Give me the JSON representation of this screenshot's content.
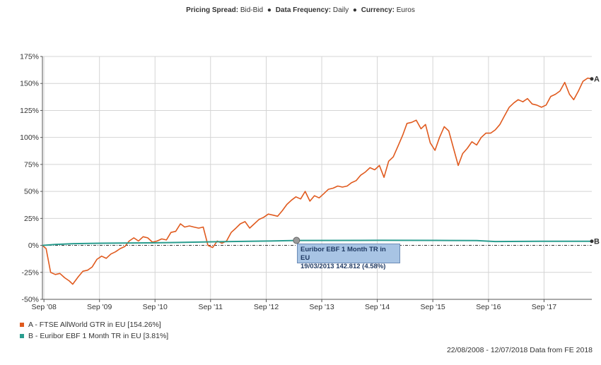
{
  "header": {
    "items": [
      {
        "label": "Pricing Spread:",
        "value": "Bid-Bid"
      },
      {
        "label": "Data Frequency:",
        "value": "Daily"
      },
      {
        "label": "Currency:",
        "value": "Euros"
      }
    ],
    "separator": "●"
  },
  "legend": [
    {
      "text": "A - FTSE AllWorld GTR in EU [154.26%]",
      "color": "#e05a1e"
    },
    {
      "text": "B - Euribor EBF 1 Month TR in EU [3.81%]",
      "color": "#2a9d8f"
    }
  ],
  "footer": "22/08/2008 - 12/07/2018 Data from FE 2018",
  "tooltip": {
    "title": "Euribor EBF 1 Month TR in EU",
    "date": "19/03/2013",
    "value": "142.812",
    "pct": "(4.58%)"
  },
  "chart_data": {
    "type": "line",
    "title": "",
    "xlabel": "",
    "ylabel": "",
    "ylim": [
      -50,
      175
    ],
    "yticks": [
      -50,
      -25,
      0,
      25,
      50,
      75,
      100,
      125,
      150,
      175
    ],
    "ytick_labels": [
      "-50%",
      "-25%",
      "0%",
      "25%",
      "50%",
      "75%",
      "100%",
      "125%",
      "150%",
      "175%"
    ],
    "xlim": [
      "2008-08-22",
      "2018-07-12"
    ],
    "xticks": [
      "2008-09-01",
      "2009-09-01",
      "2010-09-01",
      "2011-09-01",
      "2012-09-01",
      "2013-09-01",
      "2014-09-01",
      "2015-09-01",
      "2016-09-01",
      "2017-09-01"
    ],
    "xtick_labels": [
      "Sep '08",
      "Sep '09",
      "Sep '10",
      "Sep '11",
      "Sep '12",
      "Sep '13",
      "Sep '14",
      "Sep '15",
      "Sep '16",
      "Sep '17"
    ],
    "grid": true,
    "series": [
      {
        "name": "A",
        "color": "#e05a1e",
        "points": [
          [
            "2008-08-22",
            0
          ],
          [
            "2008-09-15",
            -3
          ],
          [
            "2008-10-15",
            -25
          ],
          [
            "2008-11-15",
            -27
          ],
          [
            "2008-12-15",
            -26
          ],
          [
            "2009-01-15",
            -30
          ],
          [
            "2009-02-15",
            -33
          ],
          [
            "2009-03-09",
            -36
          ],
          [
            "2009-04-15",
            -29
          ],
          [
            "2009-05-15",
            -24
          ],
          [
            "2009-06-15",
            -23
          ],
          [
            "2009-07-15",
            -20
          ],
          [
            "2009-08-15",
            -13
          ],
          [
            "2009-09-15",
            -10
          ],
          [
            "2009-10-15",
            -12
          ],
          [
            "2009-11-15",
            -8
          ],
          [
            "2009-12-15",
            -6
          ],
          [
            "2010-01-15",
            -3
          ],
          [
            "2010-02-15",
            -1
          ],
          [
            "2010-03-15",
            4
          ],
          [
            "2010-04-15",
            7
          ],
          [
            "2010-05-15",
            4
          ],
          [
            "2010-06-15",
            8
          ],
          [
            "2010-07-15",
            7
          ],
          [
            "2010-08-15",
            3
          ],
          [
            "2010-09-15",
            4
          ],
          [
            "2010-10-15",
            6
          ],
          [
            "2010-11-15",
            5
          ],
          [
            "2010-12-15",
            12
          ],
          [
            "2011-01-15",
            13
          ],
          [
            "2011-02-15",
            20
          ],
          [
            "2011-03-15",
            17
          ],
          [
            "2011-04-15",
            18
          ],
          [
            "2011-05-15",
            17
          ],
          [
            "2011-06-15",
            16
          ],
          [
            "2011-07-15",
            17
          ],
          [
            "2011-08-15",
            0
          ],
          [
            "2011-09-15",
            -2
          ],
          [
            "2011-10-15",
            4
          ],
          [
            "2011-11-15",
            2
          ],
          [
            "2011-12-15",
            4
          ],
          [
            "2012-01-15",
            12
          ],
          [
            "2012-02-15",
            16
          ],
          [
            "2012-03-15",
            20
          ],
          [
            "2012-04-15",
            22
          ],
          [
            "2012-05-15",
            16
          ],
          [
            "2012-06-15",
            20
          ],
          [
            "2012-07-15",
            24
          ],
          [
            "2012-08-15",
            26
          ],
          [
            "2012-09-15",
            29
          ],
          [
            "2012-10-15",
            28
          ],
          [
            "2012-11-15",
            27
          ],
          [
            "2012-12-15",
            32
          ],
          [
            "2013-01-15",
            38
          ],
          [
            "2013-02-15",
            42
          ],
          [
            "2013-03-15",
            45
          ],
          [
            "2013-04-15",
            43
          ],
          [
            "2013-05-15",
            50
          ],
          [
            "2013-06-15",
            41
          ],
          [
            "2013-07-15",
            46
          ],
          [
            "2013-08-15",
            44
          ],
          [
            "2013-09-15",
            48
          ],
          [
            "2013-10-15",
            52
          ],
          [
            "2013-11-15",
            53
          ],
          [
            "2013-12-15",
            55
          ],
          [
            "2014-01-15",
            54
          ],
          [
            "2014-02-15",
            55
          ],
          [
            "2014-03-15",
            58
          ],
          [
            "2014-04-15",
            60
          ],
          [
            "2014-05-15",
            65
          ],
          [
            "2014-06-15",
            68
          ],
          [
            "2014-07-15",
            72
          ],
          [
            "2014-08-15",
            70
          ],
          [
            "2014-09-15",
            74
          ],
          [
            "2014-10-15",
            63
          ],
          [
            "2014-11-15",
            78
          ],
          [
            "2014-12-15",
            82
          ],
          [
            "2015-01-15",
            92
          ],
          [
            "2015-02-15",
            102
          ],
          [
            "2015-03-15",
            113
          ],
          [
            "2015-04-15",
            114
          ],
          [
            "2015-05-15",
            116
          ],
          [
            "2015-06-15",
            108
          ],
          [
            "2015-07-15",
            112
          ],
          [
            "2015-08-15",
            95
          ],
          [
            "2015-09-15",
            88
          ],
          [
            "2015-10-15",
            100
          ],
          [
            "2015-11-15",
            110
          ],
          [
            "2015-12-15",
            106
          ],
          [
            "2016-01-15",
            90
          ],
          [
            "2016-02-15",
            74
          ],
          [
            "2016-03-15",
            85
          ],
          [
            "2016-04-15",
            90
          ],
          [
            "2016-05-15",
            96
          ],
          [
            "2016-06-15",
            93
          ],
          [
            "2016-07-15",
            100
          ],
          [
            "2016-08-15",
            104
          ],
          [
            "2016-09-15",
            104
          ],
          [
            "2016-10-15",
            107
          ],
          [
            "2016-11-15",
            112
          ],
          [
            "2016-12-15",
            120
          ],
          [
            "2017-01-15",
            128
          ],
          [
            "2017-02-15",
            132
          ],
          [
            "2017-03-15",
            135
          ],
          [
            "2017-04-15",
            133
          ],
          [
            "2017-05-15",
            136
          ],
          [
            "2017-06-15",
            131
          ],
          [
            "2017-07-15",
            130
          ],
          [
            "2017-08-15",
            128
          ],
          [
            "2017-09-15",
            130
          ],
          [
            "2017-10-15",
            138
          ],
          [
            "2017-11-15",
            140
          ],
          [
            "2017-12-15",
            143
          ],
          [
            "2018-01-15",
            151
          ],
          [
            "2018-02-15",
            140
          ],
          [
            "2018-03-15",
            135
          ],
          [
            "2018-04-15",
            143
          ],
          [
            "2018-05-15",
            152
          ],
          [
            "2018-06-15",
            155
          ],
          [
            "2018-07-12",
            154.26
          ]
        ]
      },
      {
        "name": "B",
        "color": "#2a9d8f",
        "points": [
          [
            "2008-08-22",
            0
          ],
          [
            "2008-11-15",
            0.9
          ],
          [
            "2009-03-15",
            1.6
          ],
          [
            "2009-09-15",
            2.0
          ],
          [
            "2010-09-15",
            2.4
          ],
          [
            "2011-09-15",
            3.3
          ],
          [
            "2012-09-15",
            4.0
          ],
          [
            "2013-03-19",
            4.58
          ],
          [
            "2014-09-15",
            4.7
          ],
          [
            "2015-09-15",
            4.6
          ],
          [
            "2016-06-15",
            4.4
          ],
          [
            "2016-10-15",
            3.6
          ],
          [
            "2017-09-15",
            3.8
          ],
          [
            "2018-07-12",
            3.81
          ]
        ]
      }
    ],
    "end_labels": [
      "A",
      "B"
    ],
    "highlight": {
      "series": "B",
      "date": "2013-03-19",
      "value": 4.58
    }
  }
}
